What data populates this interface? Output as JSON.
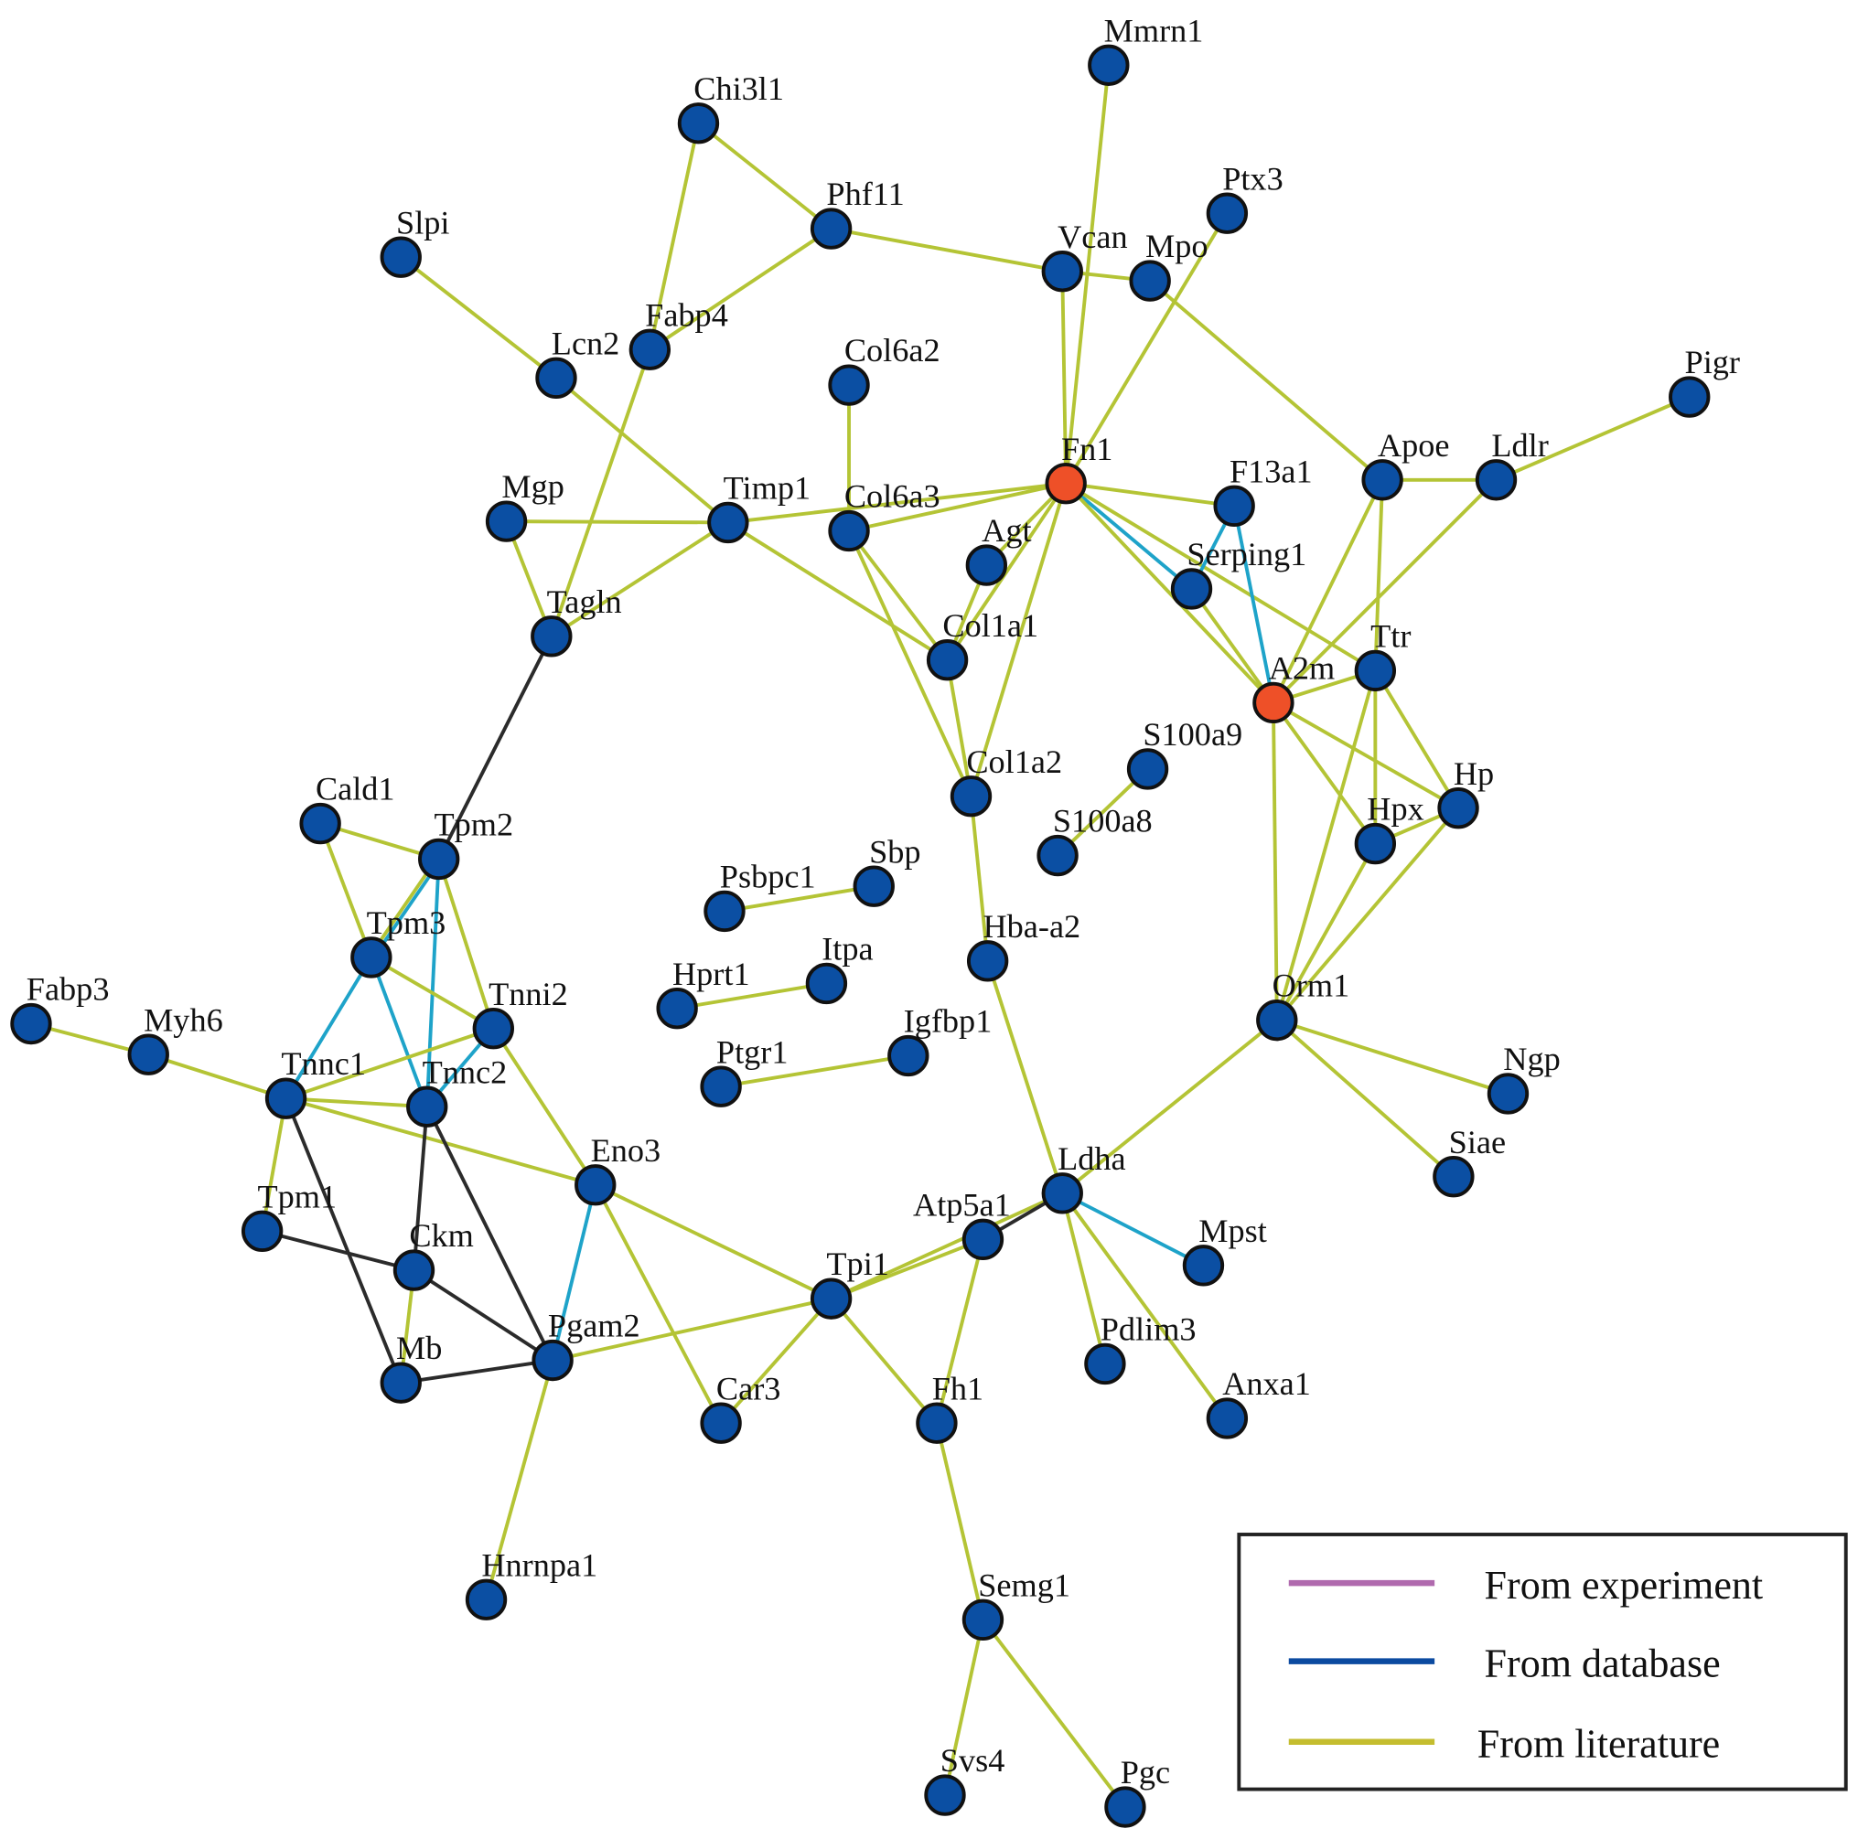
{
  "colors": {
    "node_default": "#0b4fa3",
    "node_highlight": "#ee5028",
    "node_stroke": "#111111",
    "edge_literature": "#b4c435",
    "edge_database": "#1ea3c9",
    "edge_other": "#2b2b2b",
    "legend_experiment": "#b06aae",
    "legend_database": "#0b4aa0",
    "legend_literature": "#c4bd2f"
  },
  "legend": {
    "items": [
      {
        "label": "From experiment",
        "color_key": "legend_experiment"
      },
      {
        "label": "From database",
        "color_key": "legend_database"
      },
      {
        "label": "From literature",
        "color_key": "legend_literature"
      }
    ]
  },
  "nodes": [
    {
      "name": "Mmrn1"
    },
    {
      "name": "Chi3l1"
    },
    {
      "name": "Phf11"
    },
    {
      "name": "Ptx3"
    },
    {
      "name": "Slpi"
    },
    {
      "name": "Vcan"
    },
    {
      "name": "Mpo"
    },
    {
      "name": "Lcn2"
    },
    {
      "name": "Fabp4"
    },
    {
      "name": "Col6a2"
    },
    {
      "name": "Pigr"
    },
    {
      "name": "Fn1",
      "highlight": true
    },
    {
      "name": "Apoe"
    },
    {
      "name": "Ldlr"
    },
    {
      "name": "F13a1"
    },
    {
      "name": "Mgp"
    },
    {
      "name": "Timp1"
    },
    {
      "name": "Col6a3"
    },
    {
      "name": "Agt"
    },
    {
      "name": "Serping1"
    },
    {
      "name": "Tagln"
    },
    {
      "name": "Col1a1"
    },
    {
      "name": "Ttr"
    },
    {
      "name": "A2m",
      "highlight": true
    },
    {
      "name": "S100a9"
    },
    {
      "name": "Col1a2"
    },
    {
      "name": "Hp"
    },
    {
      "name": "Cald1"
    },
    {
      "name": "Tpm2"
    },
    {
      "name": "Hpx"
    },
    {
      "name": "S100a8"
    },
    {
      "name": "Sbp"
    },
    {
      "name": "Psbpc1"
    },
    {
      "name": "Tpm3"
    },
    {
      "name": "Hba-a2"
    },
    {
      "name": "Itpa"
    },
    {
      "name": "Tnni2"
    },
    {
      "name": "Hprt1"
    },
    {
      "name": "Orm1"
    },
    {
      "name": "Fabp3"
    },
    {
      "name": "Myh6"
    },
    {
      "name": "Igfbp1"
    },
    {
      "name": "Ptgr1"
    },
    {
      "name": "Ngp"
    },
    {
      "name": "Tnnc1"
    },
    {
      "name": "Tnnc2"
    },
    {
      "name": "Siae"
    },
    {
      "name": "Eno3"
    },
    {
      "name": "Ldha"
    },
    {
      "name": "Tpm1"
    },
    {
      "name": "Atp5a1"
    },
    {
      "name": "Mpst"
    },
    {
      "name": "Ckm"
    },
    {
      "name": "Tpi1"
    },
    {
      "name": "Pgam2"
    },
    {
      "name": "Pdlim3"
    },
    {
      "name": "Mb"
    },
    {
      "name": "Anxa1"
    },
    {
      "name": "Car3"
    },
    {
      "name": "Fh1"
    },
    {
      "name": "Hnrnpa1"
    },
    {
      "name": "Semg1"
    },
    {
      "name": "Svs4"
    },
    {
      "name": "Pgc"
    }
  ],
  "edges": [
    [
      "Chi3l1",
      "Phf11",
      "literature"
    ],
    [
      "Chi3l1",
      "Fabp4",
      "literature"
    ],
    [
      "Phf11",
      "Fabp4",
      "literature"
    ],
    [
      "Phf11",
      "Vcan",
      "literature"
    ],
    [
      "Vcan",
      "Mpo",
      "literature"
    ],
    [
      "Vcan",
      "Fn1",
      "literature"
    ],
    [
      "Mmrn1",
      "Fn1",
      "literature"
    ],
    [
      "Ptx3",
      "Fn1",
      "literature"
    ],
    [
      "Mpo",
      "Apoe",
      "literature"
    ],
    [
      "Slpi",
      "Lcn2",
      "literature"
    ],
    [
      "Lcn2",
      "Timp1",
      "literature"
    ],
    [
      "Fabp4",
      "Tagln",
      "literature"
    ],
    [
      "Mgp",
      "Timp1",
      "literature"
    ],
    [
      "Mgp",
      "Tagln",
      "literature"
    ],
    [
      "Timp1",
      "Tagln",
      "literature"
    ],
    [
      "Timp1",
      "Fn1",
      "literature"
    ],
    [
      "Timp1",
      "Col1a1",
      "literature"
    ],
    [
      "Col6a2",
      "Col6a3",
      "literature"
    ],
    [
      "Col6a3",
      "Fn1",
      "literature"
    ],
    [
      "Col6a3",
      "Col1a1",
      "literature"
    ],
    [
      "Col6a3",
      "Col1a2",
      "literature"
    ],
    [
      "Agt",
      "Fn1",
      "literature"
    ],
    [
      "Agt",
      "Col1a1",
      "literature"
    ],
    [
      "Fn1",
      "Col1a1",
      "literature"
    ],
    [
      "Fn1",
      "Col1a2",
      "literature"
    ],
    [
      "Col1a1",
      "Col1a2",
      "literature"
    ],
    [
      "Col1a2",
      "Hba-a2",
      "literature"
    ],
    [
      "Hba-a2",
      "Ldha",
      "literature"
    ],
    [
      "Fn1",
      "F13a1",
      "literature"
    ],
    [
      "Fn1",
      "Serping1",
      "database"
    ],
    [
      "Fn1",
      "A2m",
      "literature"
    ],
    [
      "Fn1",
      "Ttr",
      "literature"
    ],
    [
      "Serping1",
      "A2m",
      "literature"
    ],
    [
      "Serping1",
      "F13a1",
      "database"
    ],
    [
      "F13a1",
      "A2m",
      "database"
    ],
    [
      "A2m",
      "Apoe",
      "literature"
    ],
    [
      "A2m",
      "Ldlr",
      "literature"
    ],
    [
      "A2m",
      "Ttr",
      "literature"
    ],
    [
      "A2m",
      "Hp",
      "literature"
    ],
    [
      "A2m",
      "Hpx",
      "literature"
    ],
    [
      "A2m",
      "Orm1",
      "literature"
    ],
    [
      "Apoe",
      "Ldlr",
      "literature"
    ],
    [
      "Apoe",
      "Ttr",
      "literature"
    ],
    [
      "Ldlr",
      "Pigr",
      "literature"
    ],
    [
      "Ttr",
      "Hpx",
      "literature"
    ],
    [
      "Ttr",
      "Hp",
      "literature"
    ],
    [
      "Ttr",
      "Orm1",
      "literature"
    ],
    [
      "Hpx",
      "Hp",
      "literature"
    ],
    [
      "Hpx",
      "Orm1",
      "literature"
    ],
    [
      "Hp",
      "Orm1",
      "literature"
    ],
    [
      "Orm1",
      "Ngp",
      "literature"
    ],
    [
      "Orm1",
      "Siae",
      "literature"
    ],
    [
      "Orm1",
      "Ldha",
      "literature"
    ],
    [
      "S100a9",
      "S100a8",
      "literature"
    ],
    [
      "Psbpc1",
      "Sbp",
      "literature"
    ],
    [
      "Hprt1",
      "Itpa",
      "literature"
    ],
    [
      "Ptgr1",
      "Igfbp1",
      "literature"
    ],
    [
      "Tagln",
      "Tpm2",
      "other"
    ],
    [
      "Cald1",
      "Tpm2",
      "literature"
    ],
    [
      "Cald1",
      "Tpm3",
      "literature"
    ],
    [
      "Tpm2",
      "Tpm3",
      "literature"
    ],
    [
      "Tpm2",
      "Tpm3",
      "database"
    ],
    [
      "Tpm2",
      "Tnnc2",
      "database"
    ],
    [
      "Tpm2",
      "Tnni2",
      "literature"
    ],
    [
      "Tpm3",
      "Tnnc1",
      "database"
    ],
    [
      "Tpm3",
      "Tnnc2",
      "database"
    ],
    [
      "Tpm3",
      "Tnni2",
      "literature"
    ],
    [
      "Tnni2",
      "Tnnc1",
      "literature"
    ],
    [
      "Tnni2",
      "Tnnc2",
      "database"
    ],
    [
      "Tnni2",
      "Eno3",
      "literature"
    ],
    [
      "Fabp3",
      "Myh6",
      "literature"
    ],
    [
      "Myh6",
      "Tnnc1",
      "literature"
    ],
    [
      "Tnnc1",
      "Tnnc2",
      "literature"
    ],
    [
      "Tnnc1",
      "Eno3",
      "literature"
    ],
    [
      "Tnnc1",
      "Tpm1",
      "literature"
    ],
    [
      "Tnnc1",
      "Mb",
      "other"
    ],
    [
      "Tnnc2",
      "Ckm",
      "other"
    ],
    [
      "Tnnc2",
      "Pgam2",
      "other"
    ],
    [
      "Tpm1",
      "Ckm",
      "other"
    ],
    [
      "Ckm",
      "Mb",
      "literature"
    ],
    [
      "Ckm",
      "Pgam2",
      "other"
    ],
    [
      "Mb",
      "Pgam2",
      "other"
    ],
    [
      "Eno3",
      "Pgam2",
      "database"
    ],
    [
      "Eno3",
      "Car3",
      "literature"
    ],
    [
      "Eno3",
      "Tpi1",
      "literature"
    ],
    [
      "Pgam2",
      "Tpi1",
      "literature"
    ],
    [
      "Pgam2",
      "Hnrnpa1",
      "literature"
    ],
    [
      "Tpi1",
      "Car3",
      "literature"
    ],
    [
      "Tpi1",
      "Fh1",
      "literature"
    ],
    [
      "Tpi1",
      "Atp5a1",
      "literature"
    ],
    [
      "Tpi1",
      "Ldha",
      "literature"
    ],
    [
      "Atp5a1",
      "Ldha",
      "other"
    ],
    [
      "Atp5a1",
      "Fh1",
      "literature"
    ],
    [
      "Ldha",
      "Mpst",
      "database"
    ],
    [
      "Ldha",
      "Pdlim3",
      "literature"
    ],
    [
      "Ldha",
      "Anxa1",
      "literature"
    ],
    [
      "Fh1",
      "Semg1",
      "literature"
    ],
    [
      "Semg1",
      "Svs4",
      "literature"
    ],
    [
      "Semg1",
      "Pgc",
      "literature"
    ]
  ]
}
